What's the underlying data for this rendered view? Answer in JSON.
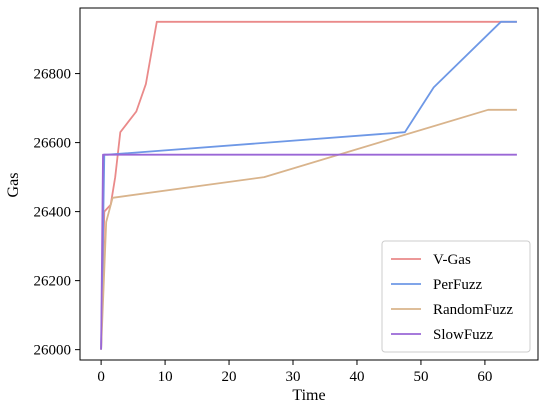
{
  "chart_data": {
    "type": "line",
    "title": "",
    "xlabel": "Time",
    "ylabel": "Gas",
    "xlim": [
      -3.3,
      68.3
    ],
    "ylim": [
      25970,
      26990
    ],
    "xticks": [
      0,
      10,
      20,
      30,
      40,
      50,
      60
    ],
    "yticks": [
      26000,
      26200,
      26400,
      26600,
      26800
    ],
    "grid": false,
    "legend_position": "lower-right",
    "series": [
      {
        "name": "V-Gas",
        "color": "#ea8a8a",
        "points": [
          [
            0,
            26000
          ],
          [
            0.5,
            26400
          ],
          [
            1.5,
            26420
          ],
          [
            2.2,
            26500
          ],
          [
            3,
            26630
          ],
          [
            5.5,
            26690
          ],
          [
            7,
            26770
          ],
          [
            8.7,
            26950
          ],
          [
            65,
            26950
          ]
        ]
      },
      {
        "name": "PerFuzz",
        "color": "#6e98e6",
        "points": [
          [
            0,
            26000
          ],
          [
            0.5,
            26565
          ],
          [
            1,
            26565
          ],
          [
            47.5,
            26630
          ],
          [
            52,
            26760
          ],
          [
            62.5,
            26950
          ],
          [
            65,
            26950
          ]
        ]
      },
      {
        "name": "RandomFuzz",
        "color": "#d9b48c",
        "points": [
          [
            0,
            26000
          ],
          [
            0.8,
            26370
          ],
          [
            1.8,
            26440
          ],
          [
            25.5,
            26500
          ],
          [
            60.5,
            26695
          ],
          [
            65,
            26695
          ]
        ]
      },
      {
        "name": "SlowFuzz",
        "color": "#9a67d6",
        "points": [
          [
            0,
            26000
          ],
          [
            0.3,
            26565
          ],
          [
            65,
            26565
          ]
        ]
      }
    ]
  }
}
